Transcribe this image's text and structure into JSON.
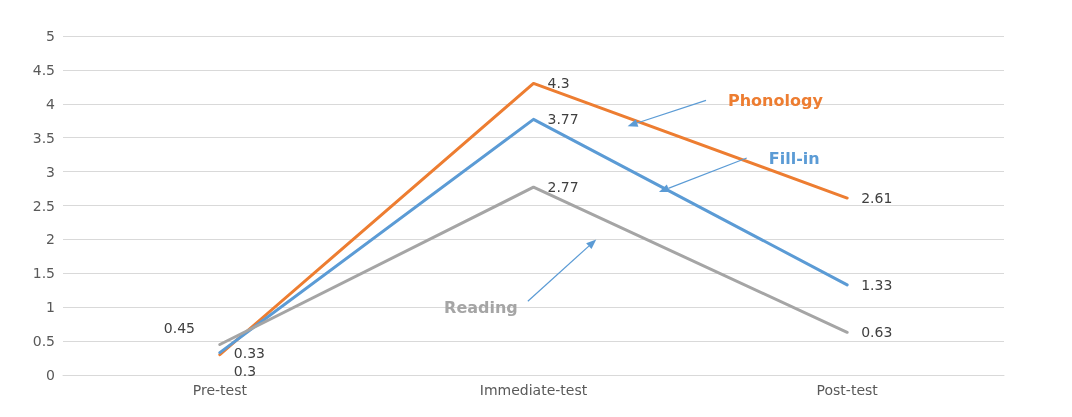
{
  "chart_data": {
    "type": "line",
    "categories": [
      "Pre-test",
      "Immediate-test",
      "Post-test"
    ],
    "series": [
      {
        "name": "Phonology",
        "color": "#ed7d31",
        "values": [
          0.3,
          4.3,
          2.61
        ]
      },
      {
        "name": "Fill-in",
        "color": "#5b9bd5",
        "values": [
          0.33,
          3.77,
          1.33
        ]
      },
      {
        "name": "Reading",
        "color": "#a5a5a5",
        "values": [
          0.45,
          2.77,
          0.63
        ]
      }
    ],
    "ylim": [
      0,
      5
    ],
    "yticks": [
      0,
      0.5,
      1,
      1.5,
      2,
      2.5,
      3,
      3.5,
      4,
      4.5,
      5
    ],
    "grid": "y",
    "marker": "none",
    "line_style": "solid",
    "data_labels": true,
    "legend": false
  }
}
